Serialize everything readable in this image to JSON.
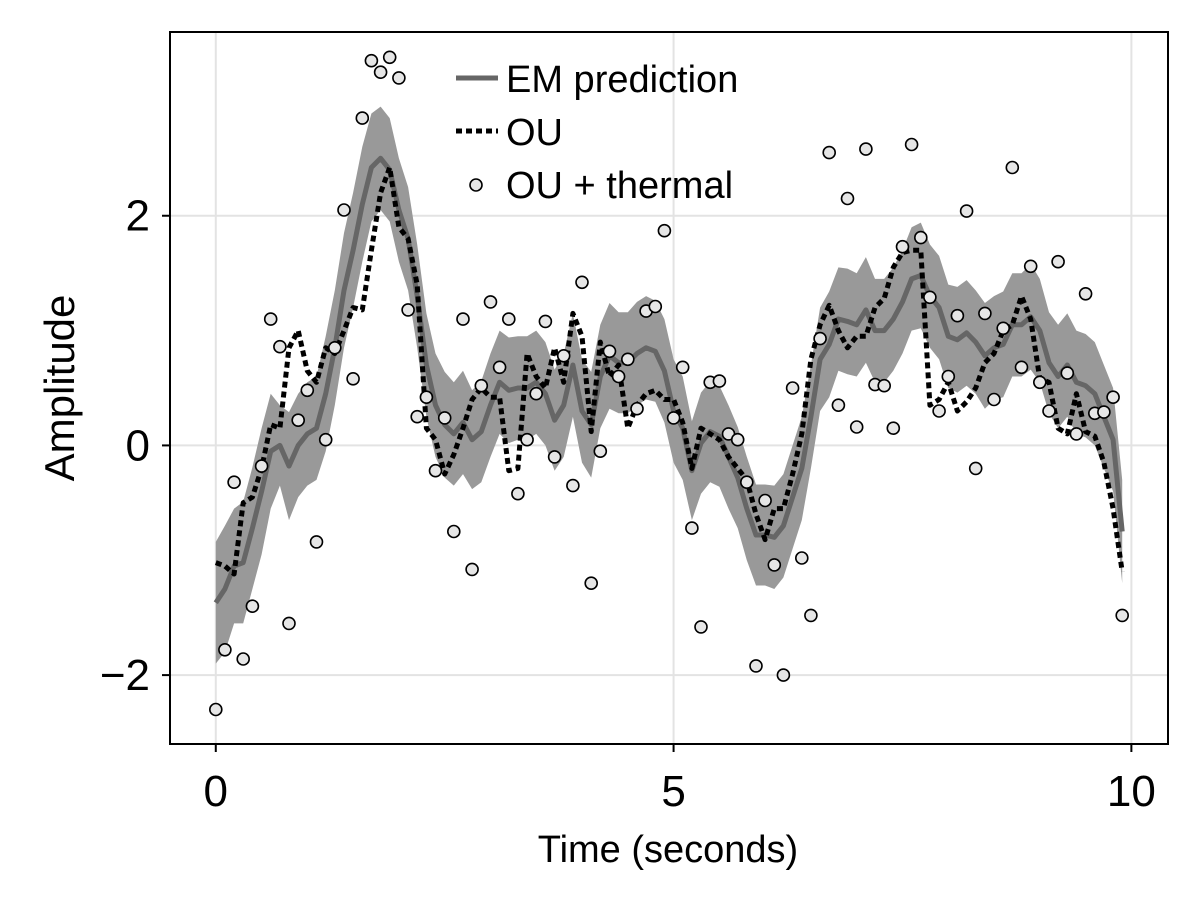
{
  "chart_data": {
    "type": "line",
    "xlabel": "Time (seconds)",
    "ylabel": "Amplitude",
    "xlim": [
      -0.5,
      10.4
    ],
    "ylim": [
      -2.6,
      3.6
    ],
    "x_ticks": [
      0,
      5,
      10
    ],
    "x_tick_labels": [
      "0",
      "5",
      "10"
    ],
    "y_ticks": [
      -2,
      0,
      2
    ],
    "y_tick_labels": [
      "−2",
      "0",
      "2"
    ],
    "grid": true,
    "legend_position": "top-center",
    "legend": [
      "EM prediction",
      "OU",
      "OU + thermal"
    ],
    "colors": {
      "em_line": "#666666",
      "band": "#999999",
      "ou_line": "#000000",
      "marker_fill": "#e6e6e6",
      "marker_edge": "#000000",
      "grid": "#e3e3e3"
    },
    "series": [
      {
        "name": "EM prediction",
        "kind": "line_with_band",
        "x": [
          0,
          0.1,
          0.2,
          0.3,
          0.4,
          0.5,
          0.6,
          0.7,
          0.8,
          0.9,
          1.0,
          1.1,
          1.2,
          1.3,
          1.4,
          1.5,
          1.6,
          1.7,
          1.8,
          1.9,
          2.0,
          2.1,
          2.2,
          2.3,
          2.4,
          2.5,
          2.6,
          2.7,
          2.8,
          2.9,
          3.0,
          3.1,
          3.2,
          3.3,
          3.4,
          3.5,
          3.6,
          3.7,
          3.8,
          3.9,
          4.0,
          4.1,
          4.2,
          4.3,
          4.4,
          4.5,
          4.6,
          4.7,
          4.8,
          4.9,
          5.0,
          5.1,
          5.2,
          5.3,
          5.4,
          5.5,
          5.6,
          5.7,
          5.8,
          5.9,
          6.0,
          6.1,
          6.2,
          6.3,
          6.4,
          6.5,
          6.6,
          6.7,
          6.8,
          6.9,
          7.0,
          7.1,
          7.2,
          7.3,
          7.4,
          7.5,
          7.6,
          7.7,
          7.8,
          7.9,
          8.0,
          8.1,
          8.2,
          8.3,
          8.4,
          8.5,
          8.6,
          8.7,
          8.8,
          8.9,
          9.0,
          9.1,
          9.2,
          9.3,
          9.4,
          9.5,
          9.6,
          9.7,
          9.8,
          9.9
        ],
        "y": [
          -1.37,
          -1.25,
          -1.05,
          -1.02,
          -0.72,
          -0.4,
          -0.05,
          0.0,
          -0.18,
          0.0,
          0.1,
          0.15,
          0.45,
          0.85,
          1.35,
          1.7,
          2.1,
          2.42,
          2.5,
          2.4,
          2.05,
          1.8,
          1.3,
          0.7,
          0.35,
          0.18,
          0.1,
          0.2,
          0.05,
          0.12,
          0.35,
          0.55,
          0.48,
          0.5,
          0.5,
          0.55,
          0.45,
          0.22,
          0.35,
          0.7,
          0.3,
          0.18,
          0.6,
          0.78,
          0.72,
          0.72,
          0.8,
          0.85,
          0.82,
          0.65,
          0.3,
          0.15,
          -0.22,
          0.02,
          0.12,
          0.08,
          -0.1,
          -0.28,
          -0.55,
          -0.78,
          -0.78,
          -0.8,
          -0.7,
          -0.45,
          -0.2,
          0.25,
          0.75,
          0.88,
          1.1,
          1.08,
          1.05,
          1.18,
          1.0,
          1.0,
          1.1,
          1.25,
          1.45,
          1.48,
          1.3,
          1.2,
          0.95,
          0.92,
          0.98,
          0.9,
          0.78,
          0.85,
          0.88,
          1.05,
          1.05,
          1.12,
          1.0,
          0.72,
          0.6,
          0.7,
          0.55,
          0.52,
          0.45,
          0.25,
          0.05,
          -0.75
        ],
        "band_lower": [
          -1.9,
          -1.8,
          -1.55,
          -1.55,
          -1.25,
          -0.95,
          -0.55,
          -0.35,
          -0.65,
          -0.45,
          -0.35,
          -0.3,
          -0.05,
          0.35,
          0.85,
          1.2,
          1.6,
          1.95,
          2.05,
          1.95,
          1.6,
          1.35,
          0.85,
          0.25,
          -0.1,
          -0.28,
          -0.35,
          -0.25,
          -0.38,
          -0.32,
          -0.1,
          0.1,
          0.02,
          0.05,
          0.05,
          0.1,
          0.0,
          -0.22,
          -0.1,
          0.25,
          -0.15,
          -0.28,
          0.15,
          0.32,
          0.28,
          0.28,
          0.35,
          0.4,
          0.38,
          0.2,
          -0.15,
          -0.3,
          -0.65,
          -0.42,
          -0.32,
          -0.36,
          -0.55,
          -0.72,
          -1.0,
          -1.22,
          -1.22,
          -1.25,
          -1.15,
          -0.9,
          -0.65,
          -0.2,
          0.3,
          0.42,
          0.65,
          0.62,
          0.6,
          0.72,
          0.55,
          0.55,
          0.65,
          0.8,
          1.0,
          1.02,
          0.85,
          0.75,
          0.5,
          0.46,
          0.52,
          0.45,
          0.32,
          0.4,
          0.42,
          0.6,
          0.6,
          0.66,
          0.55,
          0.28,
          0.15,
          0.25,
          0.1,
          0.07,
          0.0,
          -0.2,
          -0.4,
          -1.2
        ],
        "band_upper": [
          -0.84,
          -0.7,
          -0.55,
          -0.49,
          -0.19,
          0.15,
          0.45,
          0.35,
          0.29,
          0.45,
          0.55,
          0.6,
          0.95,
          1.35,
          1.85,
          2.2,
          2.6,
          2.89,
          2.95,
          2.85,
          2.5,
          2.25,
          1.75,
          1.15,
          0.8,
          0.64,
          0.55,
          0.65,
          0.48,
          0.56,
          0.8,
          1.0,
          0.94,
          0.95,
          0.95,
          1.0,
          0.9,
          0.66,
          0.8,
          1.15,
          0.75,
          0.64,
          1.05,
          1.24,
          1.16,
          1.16,
          1.25,
          1.3,
          1.26,
          1.1,
          0.75,
          0.6,
          0.21,
          0.46,
          0.56,
          0.52,
          0.35,
          0.16,
          -0.1,
          -0.34,
          -0.34,
          -0.35,
          -0.25,
          0.0,
          0.25,
          0.7,
          1.2,
          1.34,
          1.55,
          1.54,
          1.5,
          1.64,
          1.45,
          1.45,
          1.55,
          1.7,
          1.9,
          1.94,
          1.75,
          1.65,
          1.4,
          1.38,
          1.44,
          1.35,
          1.24,
          1.3,
          1.34,
          1.5,
          1.5,
          1.58,
          1.45,
          1.16,
          1.05,
          1.15,
          1.0,
          0.97,
          0.9,
          0.7,
          0.5,
          -0.3
        ]
      },
      {
        "name": "OU",
        "kind": "dashed_line",
        "x": [
          0,
          0.1,
          0.2,
          0.3,
          0.4,
          0.5,
          0.6,
          0.7,
          0.8,
          0.9,
          1.0,
          1.1,
          1.2,
          1.3,
          1.4,
          1.5,
          1.6,
          1.7,
          1.8,
          1.9,
          2.0,
          2.1,
          2.2,
          2.3,
          2.4,
          2.5,
          2.6,
          2.7,
          2.8,
          2.9,
          3.0,
          3.1,
          3.2,
          3.3,
          3.4,
          3.5,
          3.6,
          3.7,
          3.8,
          3.9,
          4.0,
          4.1,
          4.2,
          4.3,
          4.4,
          4.5,
          4.6,
          4.7,
          4.8,
          4.9,
          5.0,
          5.1,
          5.2,
          5.3,
          5.4,
          5.5,
          5.6,
          5.7,
          5.8,
          5.9,
          6.0,
          6.1,
          6.2,
          6.3,
          6.4,
          6.5,
          6.6,
          6.7,
          6.8,
          6.9,
          7.0,
          7.1,
          7.2,
          7.3,
          7.4,
          7.5,
          7.6,
          7.7,
          7.8,
          7.9,
          8.0,
          8.1,
          8.2,
          8.3,
          8.4,
          8.5,
          8.6,
          8.7,
          8.8,
          8.9,
          9.0,
          9.1,
          9.2,
          9.3,
          9.4,
          9.5,
          9.6,
          9.7,
          9.8,
          9.9
        ],
        "y": [
          -1.02,
          -1.05,
          -1.12,
          -0.5,
          -0.45,
          -0.2,
          0.18,
          0.15,
          0.85,
          1.0,
          0.65,
          0.55,
          0.85,
          0.8,
          1.0,
          1.2,
          1.18,
          1.7,
          2.2,
          2.42,
          1.9,
          1.8,
          1.4,
          0.15,
          0.05,
          -0.25,
          -0.08,
          0.15,
          0.4,
          0.5,
          0.42,
          0.42,
          -0.22,
          -0.2,
          0.8,
          0.6,
          0.5,
          0.85,
          0.55,
          1.15,
          0.95,
          0.12,
          0.9,
          0.6,
          0.7,
          0.15,
          0.35,
          0.45,
          0.48,
          0.4,
          0.4,
          0.2,
          -0.2,
          0.15,
          0.1,
          0.05,
          -0.1,
          -0.2,
          -0.3,
          -0.6,
          -0.82,
          -0.55,
          -0.55,
          -0.25,
          0.1,
          0.75,
          1.05,
          1.22,
          1.0,
          0.85,
          0.95,
          0.95,
          1.2,
          1.28,
          1.55,
          1.68,
          1.7,
          1.7,
          0.35,
          0.4,
          0.55,
          0.3,
          0.38,
          0.5,
          0.72,
          0.8,
          1.0,
          1.05,
          1.3,
          1.1,
          0.58,
          0.55,
          0.15,
          0.1,
          0.45,
          0.12,
          0.08,
          -0.15,
          -0.55,
          -1.1
        ]
      },
      {
        "name": "OU + thermal",
        "kind": "scatter",
        "x": [
          0,
          0.1,
          0.2,
          0.3,
          0.4,
          0.5,
          0.6,
          0.7,
          0.8,
          0.9,
          1.0,
          1.1,
          1.2,
          1.3,
          1.4,
          1.5,
          1.6,
          1.7,
          1.8,
          1.9,
          2.0,
          2.1,
          2.2,
          2.3,
          2.4,
          2.5,
          2.6,
          2.7,
          2.8,
          2.9,
          3.0,
          3.1,
          3.2,
          3.3,
          3.4,
          3.5,
          3.6,
          3.7,
          3.8,
          3.9,
          4.0,
          4.1,
          4.2,
          4.3,
          4.4,
          4.5,
          4.6,
          4.7,
          4.8,
          4.9,
          5.0,
          5.1,
          5.2,
          5.3,
          5.4,
          5.5,
          5.6,
          5.7,
          5.8,
          5.9,
          6.0,
          6.1,
          6.2,
          6.3,
          6.4,
          6.5,
          6.6,
          6.7,
          6.8,
          6.9,
          7.0,
          7.1,
          7.2,
          7.3,
          7.4,
          7.5,
          7.6,
          7.7,
          7.8,
          7.9,
          8.0,
          8.1,
          8.2,
          8.3,
          8.4,
          8.5,
          8.6,
          8.7,
          8.8,
          8.9,
          9.0,
          9.1,
          9.2,
          9.3,
          9.4,
          9.5,
          9.6,
          9.7,
          9.8,
          9.9
        ],
        "y": [
          -2.3,
          -1.78,
          -0.32,
          -1.86,
          -1.4,
          -0.18,
          1.1,
          0.86,
          -1.55,
          0.22,
          0.48,
          -0.84,
          0.05,
          0.85,
          2.05,
          0.58,
          2.85,
          3.35,
          3.25,
          3.38,
          3.2,
          1.18,
          0.25,
          0.42,
          -0.22,
          0.24,
          -0.75,
          1.1,
          -1.08,
          0.52,
          1.25,
          0.68,
          1.1,
          -0.42,
          0.05,
          0.45,
          1.08,
          -0.1,
          0.78,
          -0.35,
          1.42,
          -1.2,
          -0.05,
          0.82,
          0.6,
          0.75,
          0.32,
          1.17,
          1.21,
          1.87,
          0.24,
          0.68,
          -0.72,
          -1.58,
          0.55,
          0.56,
          0.1,
          0.05,
          -0.32,
          -1.92,
          -0.48,
          -1.04,
          -2.0,
          0.5,
          -0.98,
          -1.48,
          0.93,
          2.55,
          0.35,
          2.15,
          0.16,
          2.58,
          0.53,
          0.52,
          0.15,
          1.73,
          2.62,
          1.81,
          1.29,
          0.3,
          0.6,
          1.13,
          2.04,
          -0.2,
          1.15,
          0.4,
          1.02,
          2.42,
          0.68,
          1.56,
          0.55,
          0.3,
          1.6,
          0.63,
          0.1,
          1.32,
          0.28,
          0.29,
          0.42,
          -1.48
        ]
      }
    ]
  }
}
